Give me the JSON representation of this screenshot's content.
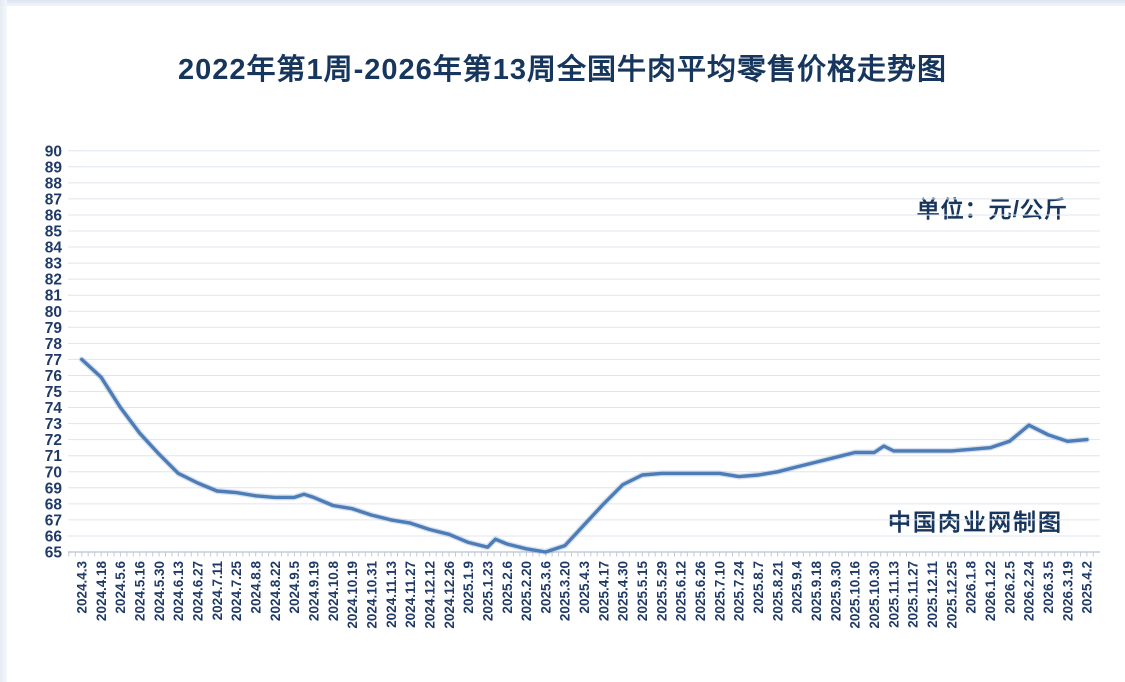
{
  "title": "2022年第1周-2026年第13周全国牛肉平均零售价格走势图",
  "unit_label": "单位：元/公斤",
  "watermark": "中国肉业网制图",
  "chart_data": {
    "type": "line",
    "title": "2022年第1周-2026年第13周全国牛肉平均零售价格走势图",
    "unit": "元/公斤",
    "ylim": [
      65,
      90
    ],
    "ytick_interval": 1,
    "grid": "horizontal",
    "legend": "none",
    "categories": [
      "2024.4.3",
      "2024.4.18",
      "2024.5.6",
      "2024.5.16",
      "2024.5.30",
      "2024.6.13",
      "2024.6.27",
      "2024.7.11",
      "2024.7.25",
      "2024.8.8",
      "2024.8.22",
      "2024.9.5",
      "2024.9.19",
      "2024.10.8",
      "2024.10.19",
      "2024.10.31",
      "2024.11.13",
      "2024.11.27",
      "2024.12.12",
      "2024.12.26",
      "2025.1.9",
      "2025.1.23",
      "2025.2.6",
      "2025.2.20",
      "2025.3.6",
      "2025.3.20",
      "2025.4.3",
      "2025.4.17",
      "2025.4.30",
      "2025.5.15",
      "2025.5.29",
      "2025.6.12",
      "2025.6.26",
      "2025.7.10",
      "2025.7.24",
      "2025.8.7",
      "2025.8.21",
      "2025.9.4",
      "2025.9.18",
      "2025.9.30",
      "2025.10.16",
      "2025.10.30",
      "2025.11.13",
      "2025.11.27",
      "2025.12.11",
      "2025.12.25",
      "2026.1.8",
      "2026.1.22",
      "2026.2.5",
      "2026.2.24",
      "2026.3.5",
      "2026.3.19",
      "2025.4.2"
    ],
    "values": [
      77.0,
      75.9,
      74.0,
      72.4,
      71.1,
      69.9,
      69.3,
      68.8,
      68.7,
      68.5,
      68.4,
      68.4,
      68.4,
      67.9,
      67.7,
      67.3,
      67.0,
      66.8,
      66.4,
      66.1,
      65.6,
      65.3,
      65.5,
      65.2,
      65.0,
      65.4,
      66.7,
      68.0,
      69.2,
      69.8,
      69.9,
      69.9,
      69.9,
      69.9,
      69.7,
      69.8,
      70.0,
      70.3,
      70.6,
      70.9,
      71.2,
      71.2,
      71.3,
      71.3,
      71.3,
      71.3,
      71.4,
      71.5,
      71.9,
      72.9,
      72.3,
      71.9,
      72.0
    ],
    "extra_points": [
      {
        "index": 11.5,
        "value": 68.6
      },
      {
        "index": 21.4,
        "value": 65.8
      },
      {
        "index": 41.5,
        "value": 71.6
      }
    ],
    "colors": {
      "line": "#4d7db8",
      "line_halo": "#8fa9cd",
      "grid": "#dfe5ee",
      "axis": "#c2cbd9",
      "label": "#1f3a67",
      "title": "#17365d"
    }
  }
}
